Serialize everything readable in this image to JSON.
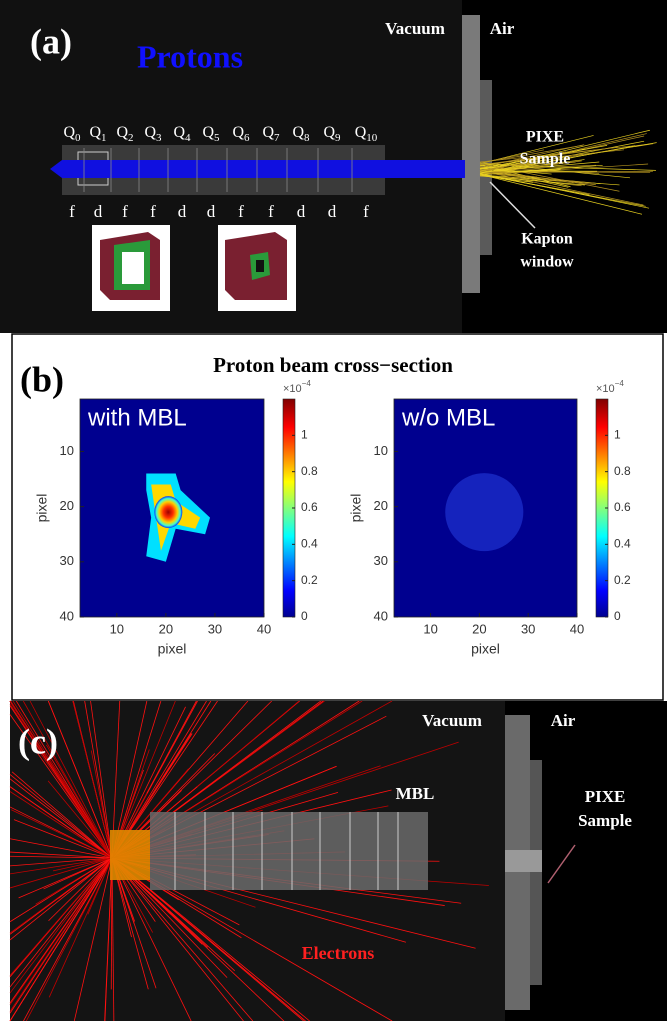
{
  "panel_a": {
    "label": "(a)",
    "title": "Protons",
    "vacuum": "Vacuum",
    "air": "Air",
    "quadrupoles": [
      {
        "name": "Q",
        "index": "0",
        "type": "f"
      },
      {
        "name": "Q",
        "index": "1",
        "type": "d"
      },
      {
        "name": "Q",
        "index": "2",
        "type": "f"
      },
      {
        "name": "Q",
        "index": "3",
        "type": "f"
      },
      {
        "name": "Q",
        "index": "4",
        "type": "d"
      },
      {
        "name": "Q",
        "index": "5",
        "type": "d"
      },
      {
        "name": "Q",
        "index": "6",
        "type": "f"
      },
      {
        "name": "Q",
        "index": "7",
        "type": "f"
      },
      {
        "name": "Q",
        "index": "8",
        "type": "d"
      },
      {
        "name": "Q",
        "index": "9",
        "type": "d"
      },
      {
        "name": "Q",
        "index": "10",
        "type": "f"
      }
    ],
    "sample_label": [
      "PIXE",
      "Sample"
    ],
    "window_label": [
      "Kapton",
      "window"
    ]
  },
  "panel_b": {
    "label": "(b)",
    "title": "Proton beam cross−section",
    "plots": [
      {
        "label": "with MBL",
        "xlabel": "pixel",
        "ylabel": "pixel",
        "xlim": [
          2.5,
          40
        ],
        "ylim": [
          0.5,
          40
        ],
        "xticks": [
          10,
          20,
          30,
          40
        ],
        "yticks": [
          10,
          20,
          30,
          40
        ],
        "colorbar": {
          "multiplier": "×10",
          "exponent": "−4",
          "clim": [
            0,
            1.2
          ],
          "ticks": [
            0,
            0.2,
            0.4,
            0.6,
            0.8,
            1
          ]
        }
      },
      {
        "label": "w/o MBL",
        "xlabel": "pixel",
        "ylabel": "pixel",
        "xlim": [
          2.5,
          40
        ],
        "ylim": [
          0.5,
          40
        ],
        "xticks": [
          10,
          20,
          30,
          40
        ],
        "yticks": [
          10,
          20,
          30,
          40
        ],
        "colorbar": {
          "multiplier": "×10",
          "exponent": "−4",
          "clim": [
            0,
            1.2
          ],
          "ticks": [
            0,
            0.2,
            0.4,
            0.6,
            0.8,
            1
          ]
        }
      }
    ]
  },
  "panel_c": {
    "label": "(c)",
    "vacuum": "Vacuum",
    "air": "Air",
    "mbl": "MBL",
    "sample_label": [
      "PIXE",
      "Sample"
    ],
    "electrons": "Electrons"
  }
}
